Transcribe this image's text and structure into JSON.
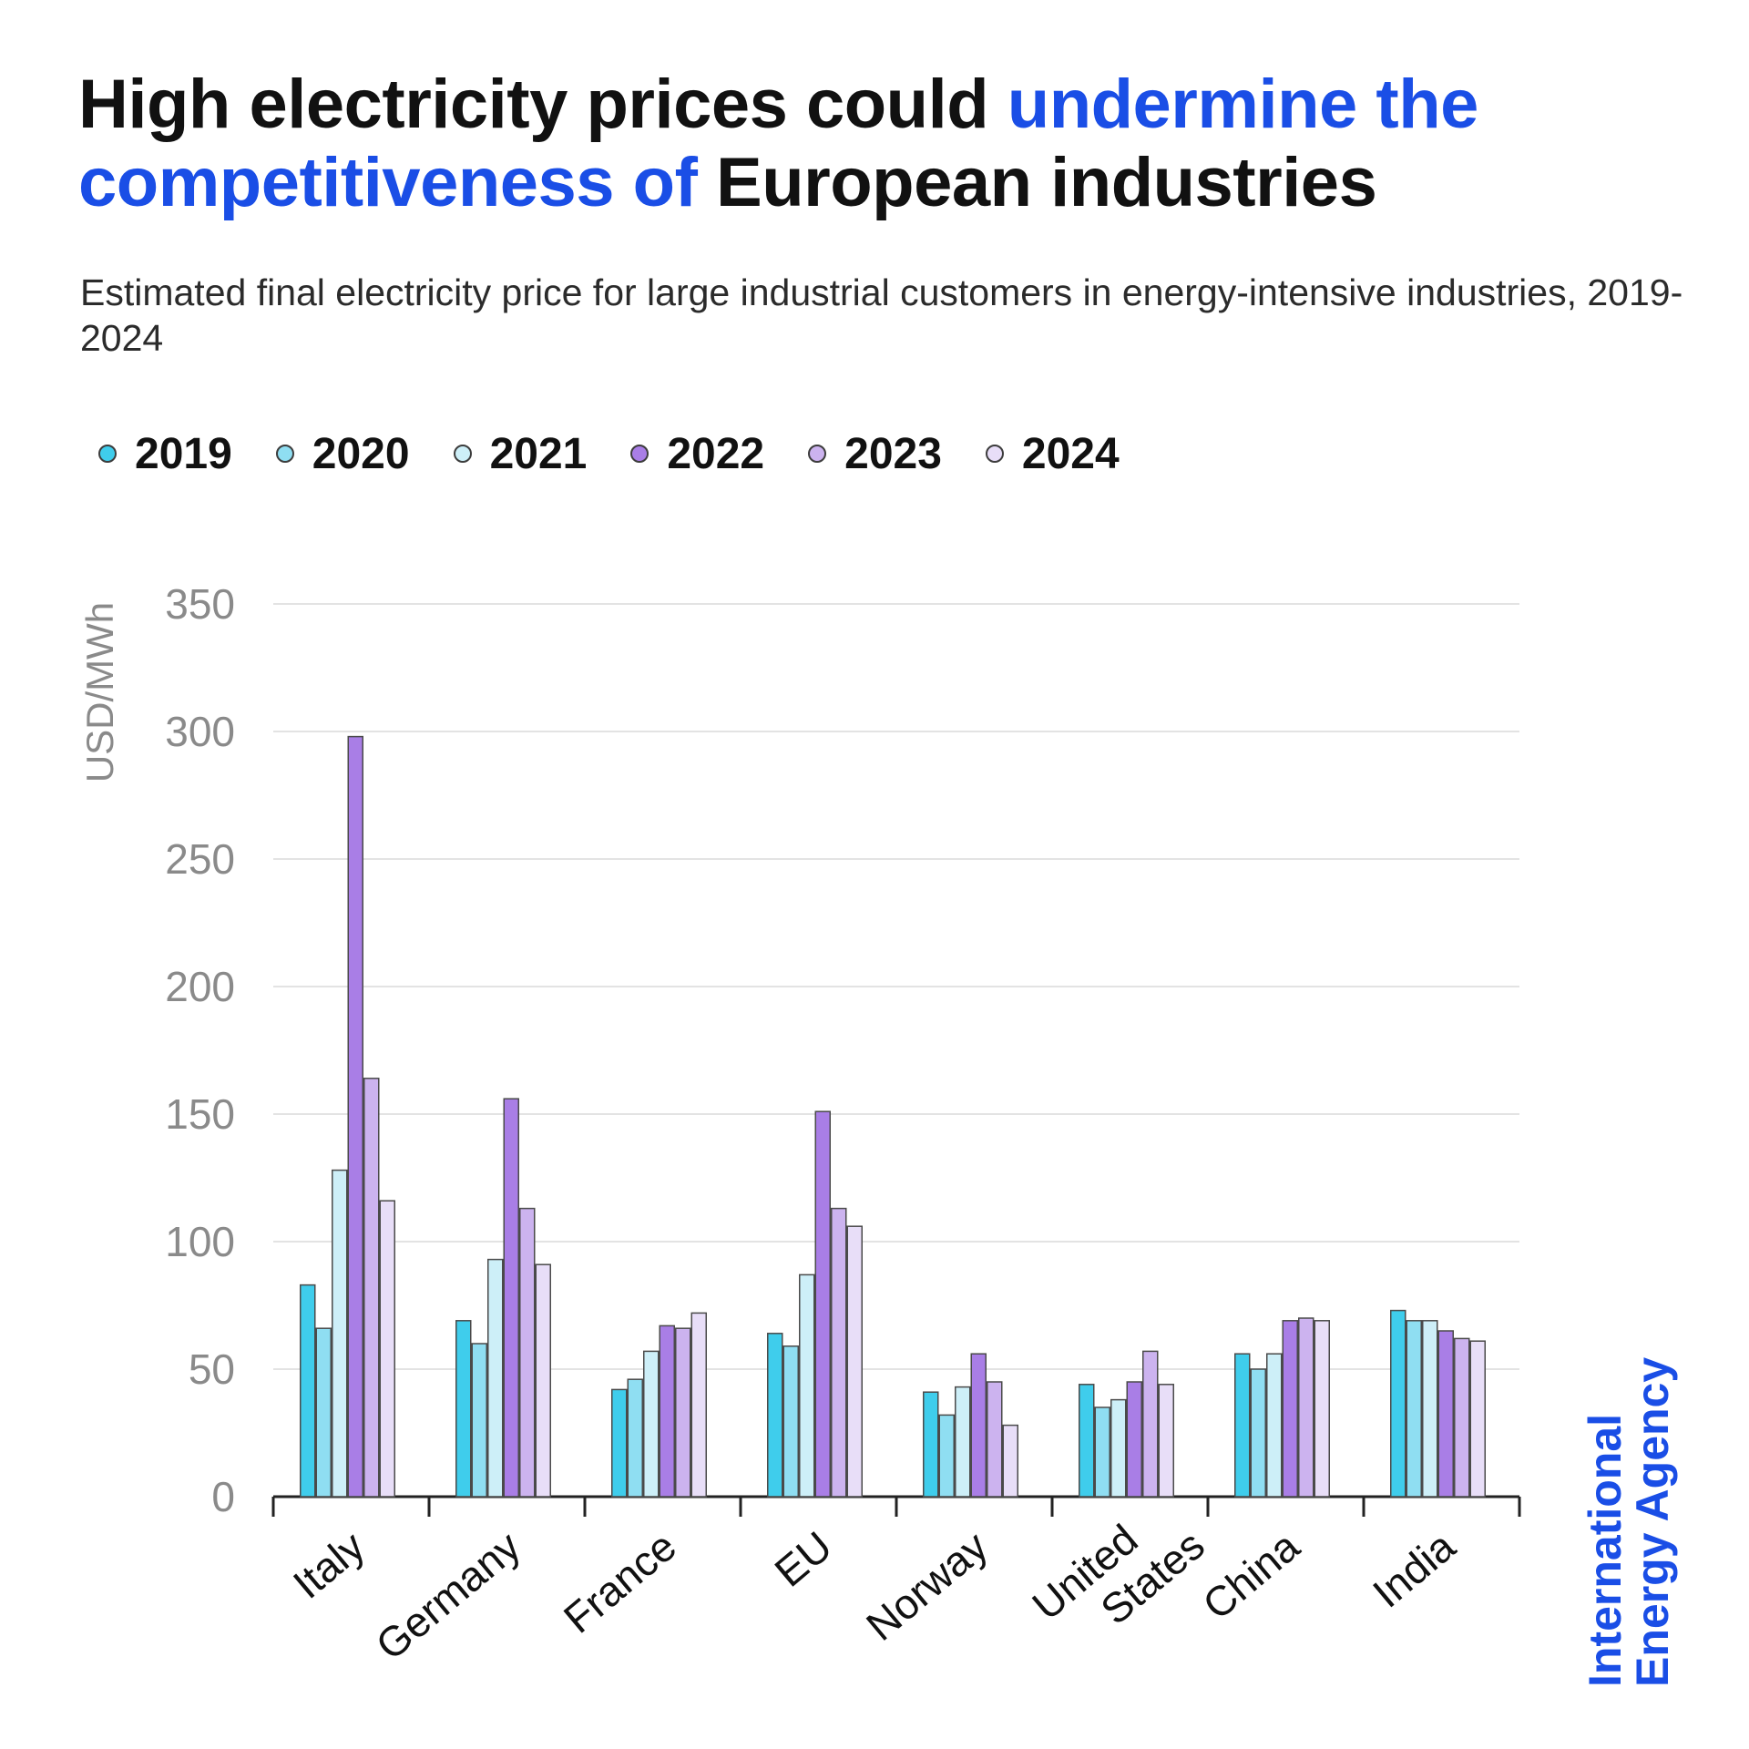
{
  "title": {
    "part1": "High electricity prices could ",
    "part2": "undermine the competitiveness of",
    "part3": " European industries"
  },
  "subtitle": "Estimated final electricity price for large industrial customers in energy-intensive industries, 2019-2024",
  "brand": {
    "line1": "International",
    "line2": "Energy Agency"
  },
  "colors": {
    "title_highlight": "#1a4ee6",
    "grid": "#e3e3e3",
    "axis": "#222222",
    "tick_text": "#8a8a8a",
    "bar_stroke": "#4a4a4a"
  },
  "chart_data": {
    "type": "bar",
    "title": "High electricity prices could undermine the competitiveness of European industries",
    "subtitle": "Estimated final electricity price for large industrial customers in energy-intensive industries, 2019-2024",
    "xlabel": "",
    "ylabel": "USD/MWh",
    "ylim": [
      0,
      350
    ],
    "yticks": [
      0,
      50,
      100,
      150,
      200,
      250,
      300,
      350
    ],
    "grid": true,
    "legend_position": "top-left",
    "categories": [
      "Italy",
      "Germany",
      "France",
      "EU",
      "Norway",
      "United States",
      "China",
      "India"
    ],
    "category_label_lines": [
      [
        "Italy"
      ],
      [
        "Germany"
      ],
      [
        "France"
      ],
      [
        "EU"
      ],
      [
        "Norway"
      ],
      [
        "United",
        "States"
      ],
      [
        "China"
      ],
      [
        "India"
      ]
    ],
    "series": [
      {
        "name": "2019",
        "color": "#3fcdec",
        "values": [
          83,
          69,
          42,
          64,
          41,
          44,
          56,
          73
        ]
      },
      {
        "name": "2020",
        "color": "#8fdef2",
        "values": [
          66,
          60,
          46,
          59,
          32,
          35,
          50,
          69
        ]
      },
      {
        "name": "2021",
        "color": "#cdeff8",
        "values": [
          128,
          93,
          57,
          87,
          43,
          38,
          56,
          69
        ]
      },
      {
        "name": "2022",
        "color": "#a97ee6",
        "values": [
          298,
          156,
          67,
          151,
          56,
          45,
          69,
          65
        ]
      },
      {
        "name": "2023",
        "color": "#ccb3ef",
        "values": [
          164,
          113,
          66,
          113,
          45,
          57,
          70,
          62
        ]
      },
      {
        "name": "2024",
        "color": "#e8def8",
        "values": [
          116,
          91,
          72,
          106,
          28,
          44,
          69,
          61
        ]
      }
    ]
  }
}
